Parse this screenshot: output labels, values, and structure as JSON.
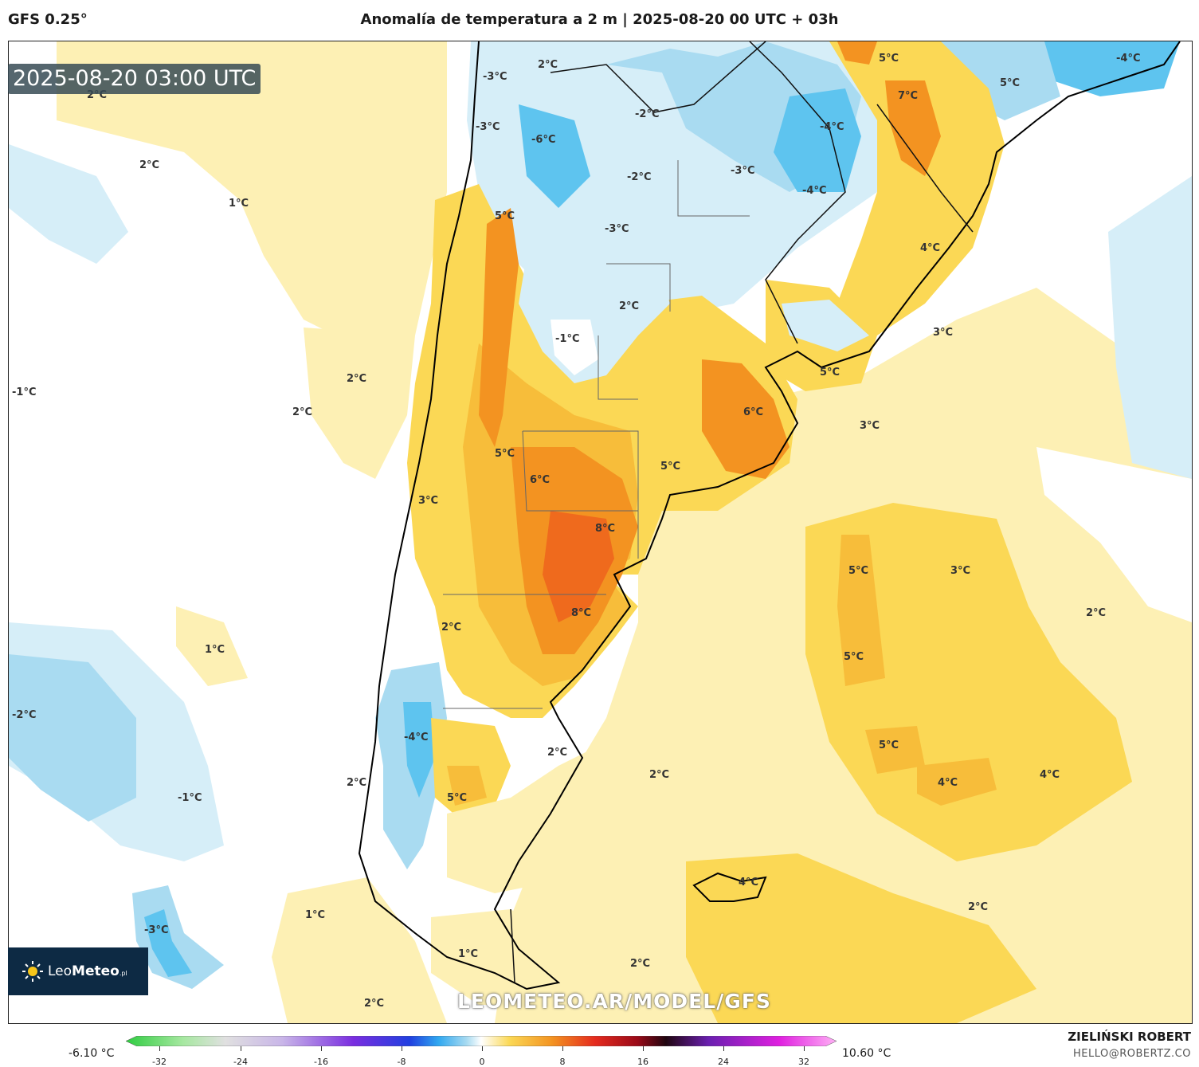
{
  "header": {
    "model": "GFS 0.25°",
    "title": "Anomalía de temperatura a 2 m | 2025-08-20 00 UTC + 03h"
  },
  "map": {
    "valid_time": "2025-08-20 03:00 UTC",
    "watermark": "LEOMETEO.AR/MODEL/GFS",
    "logo": {
      "brand_regular": "Leo",
      "brand_bold": "Meteo",
      "brand_suffix": ".pl"
    },
    "colors": {
      "ocean_white": "#ffffff",
      "pale_yellow": "#fdf0b4",
      "yellow": "#fbd855",
      "gold": "#f7bd3a",
      "orange": "#f39321",
      "red_orange": "#ef6a1d",
      "pale_blue": "#d6eef8",
      "light_blue": "#a9dbf1",
      "blue": "#5ec4ef"
    },
    "labels": [
      {
        "id": "l1",
        "text": "2°C"
      },
      {
        "id": "l2",
        "text": "-3°C"
      },
      {
        "id": "l3",
        "text": "-3°C"
      },
      {
        "id": "l4",
        "text": "-6°C"
      },
      {
        "id": "l5",
        "text": "-2°C"
      },
      {
        "id": "l6",
        "text": "-2°C"
      },
      {
        "id": "l7",
        "text": "5°C"
      },
      {
        "id": "l8",
        "text": "7°C"
      },
      {
        "id": "l9",
        "text": "5°C"
      },
      {
        "id": "l10",
        "text": "-4°C"
      },
      {
        "id": "l11",
        "text": "-4°C"
      },
      {
        "id": "l12",
        "text": "-3°C"
      },
      {
        "id": "l13",
        "text": "-4°C"
      },
      {
        "id": "l14",
        "text": "2°C"
      },
      {
        "id": "l15",
        "text": "2°C"
      },
      {
        "id": "l16",
        "text": "1°C"
      },
      {
        "id": "l17",
        "text": "5°C"
      },
      {
        "id": "l18",
        "text": "-3°C"
      },
      {
        "id": "l19",
        "text": "4°C"
      },
      {
        "id": "l20",
        "text": "2°C"
      },
      {
        "id": "l21",
        "text": "-1°C"
      },
      {
        "id": "l22",
        "text": "3°C"
      },
      {
        "id": "l23",
        "text": "5°C"
      },
      {
        "id": "l24",
        "text": "2°C"
      },
      {
        "id": "l25",
        "text": "-1°C"
      },
      {
        "id": "l26",
        "text": "2°C"
      },
      {
        "id": "l27",
        "text": "6°C"
      },
      {
        "id": "l28",
        "text": "3°C"
      },
      {
        "id": "l29",
        "text": "5°C"
      },
      {
        "id": "l30",
        "text": "5°C"
      },
      {
        "id": "l31",
        "text": "6°C"
      },
      {
        "id": "l32",
        "text": "3°C"
      },
      {
        "id": "l33",
        "text": "8°C"
      },
      {
        "id": "l34",
        "text": "5°C"
      },
      {
        "id": "l35",
        "text": "3°C"
      },
      {
        "id": "l36",
        "text": "2°C"
      },
      {
        "id": "l37",
        "text": "8°C"
      },
      {
        "id": "l38",
        "text": "2°C"
      },
      {
        "id": "l39",
        "text": "1°C"
      },
      {
        "id": "l40",
        "text": "5°C"
      },
      {
        "id": "l41",
        "text": "-2°C"
      },
      {
        "id": "l42",
        "text": "-4°C"
      },
      {
        "id": "l43",
        "text": "2°C"
      },
      {
        "id": "l44",
        "text": "2°C"
      },
      {
        "id": "l45",
        "text": "5°C"
      },
      {
        "id": "l46",
        "text": "4°C"
      },
      {
        "id": "l47",
        "text": "4°C"
      },
      {
        "id": "l48",
        "text": "2°C"
      },
      {
        "id": "l49",
        "text": "5°C"
      },
      {
        "id": "l50",
        "text": "-1°C"
      },
      {
        "id": "l51",
        "text": "4°C"
      },
      {
        "id": "l52",
        "text": "1°C"
      },
      {
        "id": "l53",
        "text": "2°C"
      },
      {
        "id": "l54",
        "text": "-3°C"
      },
      {
        "id": "l55",
        "text": "1°C"
      },
      {
        "id": "l56",
        "text": "2°C"
      },
      {
        "id": "l57",
        "text": "2°C"
      }
    ]
  },
  "colorbar": {
    "min_label": "-6.10 °C",
    "max_label": "10.60 °C",
    "ticks": [
      "-32",
      "-24",
      "-16",
      "-8",
      "0",
      "8",
      "16",
      "24",
      "32"
    ]
  },
  "footer": {
    "author": "ZIELIŃSKI ROBERT",
    "email": "HELLO@ROBERTZ.CO"
  }
}
